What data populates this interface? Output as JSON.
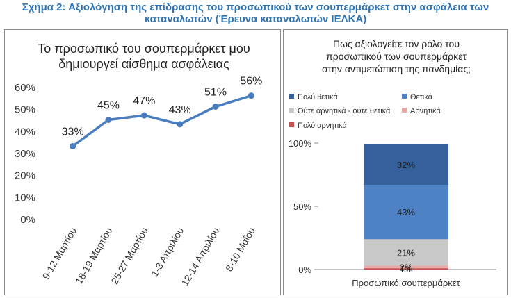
{
  "figure": {
    "title_line1": "Σχήμα 2: Αξιολόγηση της επίδρασης του προσωπικού των σουπερμάρκετ στην ασφάλεια των",
    "title_line2": "καταναλωτών (Έρευνα καταναλωτών ΙΕΛΚΑ)"
  },
  "chart_data": [
    {
      "type": "line",
      "title_line1": "Το προσωπικό του σουπερμάρκετ μου",
      "title_line2": "δημιουργεί αίσθημα ασφάλειας",
      "categories": [
        "9-12 Μαρτίου",
        "18-19 Μαρτίου",
        "25-27 Μαρτίου",
        "1-3 Απριλίου",
        "12-14 Απριλίου",
        "8-10 Μαΐου"
      ],
      "values": [
        33,
        45,
        47,
        43,
        51,
        56
      ],
      "data_labels": [
        "33%",
        "45%",
        "47%",
        "43%",
        "51%",
        "56%"
      ],
      "y_ticks": [
        "0%",
        "10%",
        "20%",
        "30%",
        "40%",
        "50%",
        "60%"
      ],
      "ylim": [
        0,
        60
      ],
      "grid": false,
      "line_color": "#4a7cc0"
    },
    {
      "type": "bar",
      "stacked": true,
      "title_line1": "Πως αξιολογείτε τον ρόλο του",
      "title_line2": "προσωπικού των σουπερμάρκετ",
      "title_line3": "στην αντιμετώπιση της πανδημίας;",
      "categories": [
        "Προσωπικό σουπερμάρκετ"
      ],
      "series": [
        {
          "name": "Πολύ αρνητικά",
          "values": [
            1
          ],
          "label": "1%",
          "color": "#c0504d"
        },
        {
          "name": "Αρνητικά",
          "values": [
            2
          ],
          "label": "2%",
          "color": "#e6a9a7"
        },
        {
          "name": "Ούτε αρνητικά - ούτε θετικά",
          "values": [
            21
          ],
          "label": "21%",
          "color": "#c8c8c8"
        },
        {
          "name": "Θετικά",
          "values": [
            43
          ],
          "label": "43%",
          "color": "#4e82c4"
        },
        {
          "name": "Πολύ θετικά",
          "values": [
            32
          ],
          "label": "32%",
          "color": "#35609c"
        }
      ],
      "legend_order": [
        "Πολύ θετικά",
        "Θετικά",
        "Ούτε αρνητικά - ούτε θετικά",
        "Αρνητικά",
        "Πολύ αρνητικά"
      ],
      "y_ticks": [
        "0%",
        "50%",
        "100%"
      ],
      "ylim": [
        0,
        100
      ],
      "legend_position": "top"
    }
  ]
}
